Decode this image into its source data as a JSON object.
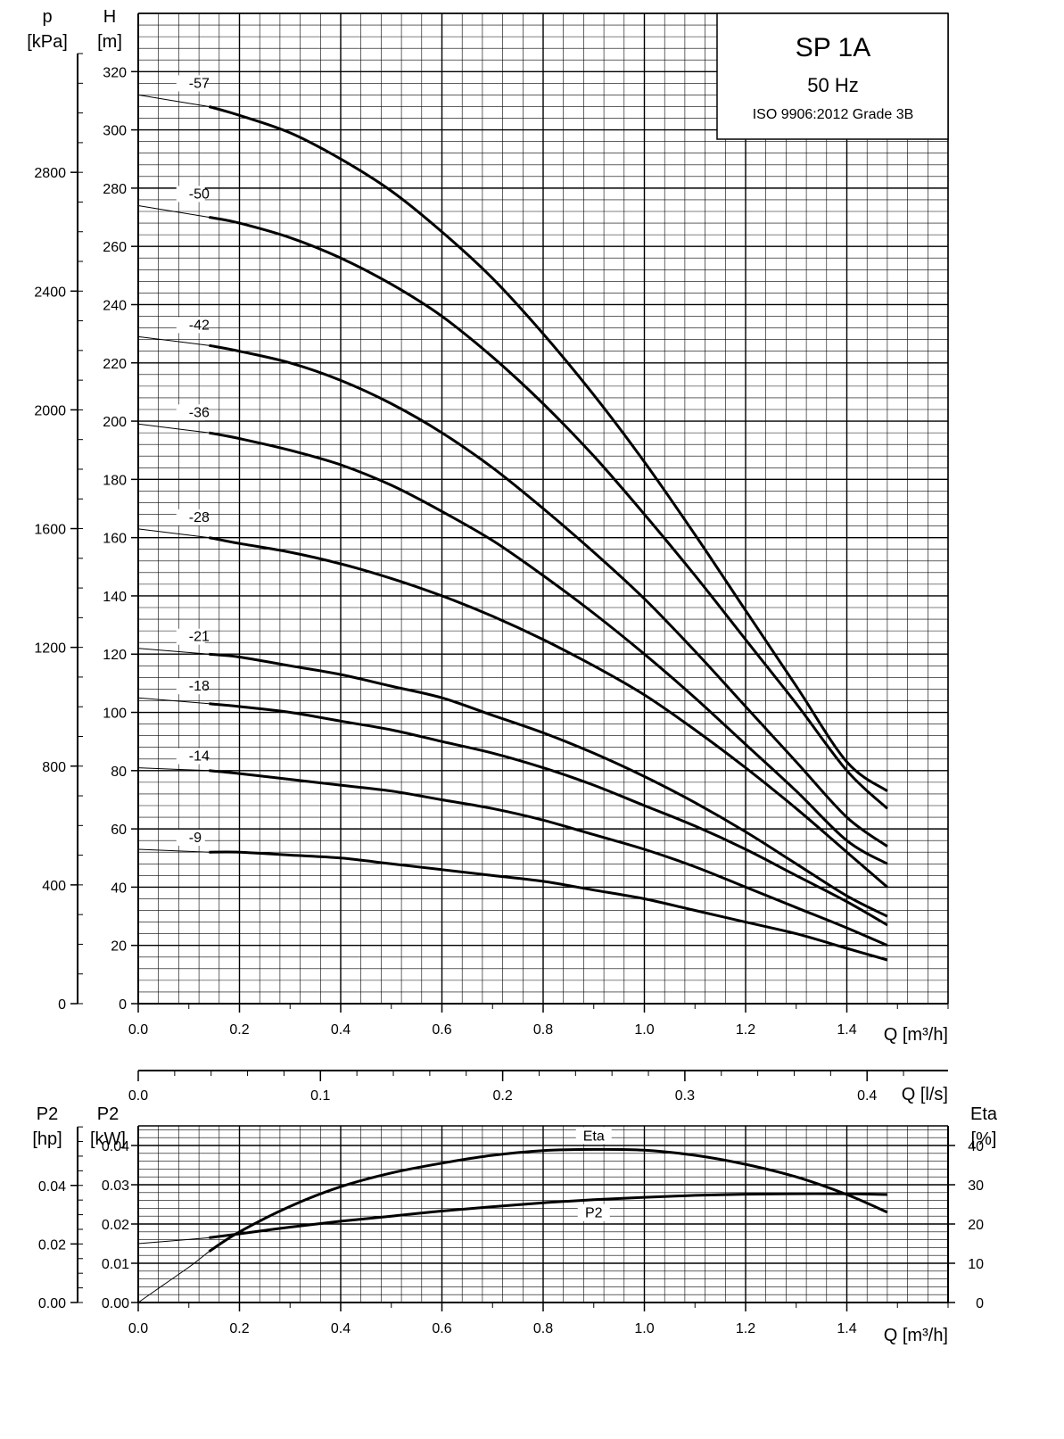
{
  "legend_box": {
    "model": "SP 1A",
    "frequency": "50 Hz",
    "standard": "ISO 9906:2012 Grade 3B"
  },
  "chart_data": [
    {
      "type": "line",
      "name": "head-chart",
      "x_label": "Q [m³/h]",
      "x_ticks": [
        "0.0",
        "0.2",
        "0.4",
        "0.6",
        "0.8",
        "1.0",
        "1.2",
        "1.4"
      ],
      "xlim": [
        0,
        1.6
      ],
      "y_label_top": "H",
      "y_label_unit": "[m]",
      "y_ticks": [
        "0",
        "20",
        "40",
        "60",
        "80",
        "100",
        "120",
        "140",
        "160",
        "180",
        "200",
        "220",
        "240",
        "260",
        "280",
        "300",
        "320"
      ],
      "ylim": [
        0,
        340
      ],
      "p_label_top": "p",
      "p_label_unit": "[kPa]",
      "p_ticks": [
        "0",
        "400",
        "800",
        "1200",
        "1600",
        "2000",
        "2400",
        "2800"
      ],
      "p_values": [
        0,
        400,
        800,
        1200,
        1600,
        2000,
        2400,
        2800
      ],
      "grid": true,
      "series": [
        {
          "name": "-57",
          "thin_x": [
            0,
            0.14
          ],
          "thin_y": [
            312,
            308
          ],
          "x": [
            0.14,
            0.2,
            0.3,
            0.4,
            0.5,
            0.6,
            0.7,
            0.8,
            0.9,
            1.0,
            1.1,
            1.2,
            1.3,
            1.4,
            1.48
          ],
          "y": [
            308,
            305,
            299,
            290,
            279,
            265,
            249,
            230,
            209,
            186,
            161,
            135,
            109,
            83,
            73
          ]
        },
        {
          "name": "-50",
          "thin_x": [
            0,
            0.14
          ],
          "thin_y": [
            274,
            270
          ],
          "x": [
            0.14,
            0.2,
            0.3,
            0.4,
            0.5,
            0.6,
            0.7,
            0.8,
            0.9,
            1.0,
            1.1,
            1.2,
            1.3,
            1.4,
            1.48
          ],
          "y": [
            270,
            268,
            263,
            256,
            247,
            236,
            222,
            206,
            188,
            168,
            147,
            125,
            103,
            80,
            67
          ]
        },
        {
          "name": "-42",
          "thin_x": [
            0,
            0.14
          ],
          "thin_y": [
            229,
            226
          ],
          "x": [
            0.14,
            0.2,
            0.3,
            0.4,
            0.5,
            0.6,
            0.7,
            0.8,
            0.9,
            1.0,
            1.1,
            1.2,
            1.3,
            1.4,
            1.48
          ],
          "y": [
            226,
            224,
            220,
            214,
            206,
            196,
            184,
            170,
            155,
            139,
            121,
            102,
            83,
            64,
            54
          ]
        },
        {
          "name": "-36",
          "thin_x": [
            0,
            0.14
          ],
          "thin_y": [
            199,
            196
          ],
          "x": [
            0.14,
            0.2,
            0.3,
            0.4,
            0.5,
            0.6,
            0.7,
            0.8,
            0.9,
            1.0,
            1.1,
            1.2,
            1.3,
            1.4,
            1.48
          ],
          "y": [
            196,
            194,
            190,
            185,
            178,
            169,
            159,
            147,
            134,
            120,
            105,
            89,
            73,
            56,
            48
          ]
        },
        {
          "name": "-28",
          "thin_x": [
            0,
            0.14
          ],
          "thin_y": [
            163,
            160
          ],
          "x": [
            0.14,
            0.2,
            0.3,
            0.4,
            0.5,
            0.6,
            0.7,
            0.8,
            0.9,
            1.0,
            1.1,
            1.2,
            1.3,
            1.4,
            1.48
          ],
          "y": [
            160,
            158,
            155,
            151,
            146,
            140,
            133,
            125,
            116,
            106,
            94,
            81,
            67,
            52,
            40
          ]
        },
        {
          "name": "-21",
          "thin_x": [
            0,
            0.14
          ],
          "thin_y": [
            122,
            120
          ],
          "x": [
            0.14,
            0.2,
            0.3,
            0.4,
            0.5,
            0.6,
            0.7,
            0.8,
            0.9,
            1.0,
            1.1,
            1.2,
            1.3,
            1.4,
            1.48
          ],
          "y": [
            120,
            119,
            116,
            113,
            109,
            105,
            99,
            93,
            86,
            78,
            69,
            59,
            48,
            37,
            30
          ]
        },
        {
          "name": "-18",
          "thin_x": [
            0,
            0.14
          ],
          "thin_y": [
            105,
            103
          ],
          "x": [
            0.14,
            0.2,
            0.3,
            0.4,
            0.5,
            0.6,
            0.7,
            0.8,
            0.9,
            1.0,
            1.1,
            1.2,
            1.3,
            1.4,
            1.48
          ],
          "y": [
            103,
            102,
            100,
            97,
            94,
            90,
            86,
            81,
            75,
            68,
            61,
            53,
            44,
            35,
            27
          ]
        },
        {
          "name": "-14",
          "thin_x": [
            0,
            0.14
          ],
          "thin_y": [
            81,
            80
          ],
          "x": [
            0.14,
            0.2,
            0.3,
            0.4,
            0.5,
            0.6,
            0.7,
            0.8,
            0.9,
            1.0,
            1.1,
            1.2,
            1.3,
            1.4,
            1.48
          ],
          "y": [
            80,
            79,
            77,
            75,
            73,
            70,
            67,
            63,
            58,
            53,
            47,
            40,
            33,
            26,
            20
          ]
        },
        {
          "name": "-9",
          "thin_x": [
            0,
            0.14
          ],
          "thin_y": [
            53,
            52
          ],
          "x": [
            0.14,
            0.2,
            0.3,
            0.4,
            0.5,
            0.6,
            0.7,
            0.8,
            0.9,
            1.0,
            1.1,
            1.2,
            1.3,
            1.4,
            1.48
          ],
          "y": [
            52,
            52,
            51,
            50,
            48,
            46,
            44,
            42,
            39,
            36,
            32,
            28,
            24,
            19,
            15
          ]
        }
      ]
    },
    {
      "type": "axis",
      "name": "flow-ls-axis",
      "x_label": "Q [l/s]",
      "x_ticks": [
        "0.0",
        "0.1",
        "0.2",
        "0.3",
        "0.4"
      ],
      "x_values": [
        0,
        0.1,
        0.2,
        0.3,
        0.4
      ],
      "xlim_m3h": [
        0,
        1.6
      ]
    },
    {
      "type": "line",
      "name": "power-efficiency-chart",
      "x_label": "Q [m³/h]",
      "x_ticks": [
        "0.0",
        "0.2",
        "0.4",
        "0.6",
        "0.8",
        "1.0",
        "1.2",
        "1.4"
      ],
      "xlim": [
        0,
        1.6
      ],
      "y_left_hp_top": "P2",
      "y_left_hp_unit": "[hp]",
      "y_left_hp_ticks": [
        "0.00",
        "0.02",
        "0.04"
      ],
      "y_left_hp_values": [
        0,
        0.02,
        0.04
      ],
      "y_left_kw_top": "P2",
      "y_left_kw_unit": "[kW]",
      "y_left_kw_ticks": [
        "0.00",
        "0.01",
        "0.02",
        "0.03",
        "0.04"
      ],
      "y_left_kw_values": [
        0,
        0.01,
        0.02,
        0.03,
        0.04
      ],
      "ylim_kw": [
        0,
        0.045
      ],
      "y_right_top": "Eta",
      "y_right_unit": "[%]",
      "y_right_ticks": [
        "0",
        "10",
        "20",
        "30",
        "40"
      ],
      "y_right_values": [
        0,
        10,
        20,
        30,
        40
      ],
      "grid": true,
      "series": [
        {
          "name": "Eta",
          "thin_x": [
            0,
            0.05,
            0.1,
            0.14
          ],
          "thin_y": [
            0,
            4.5,
            9,
            13
          ],
          "x": [
            0.14,
            0.2,
            0.3,
            0.4,
            0.5,
            0.6,
            0.7,
            0.8,
            0.9,
            1.0,
            1.1,
            1.2,
            1.3,
            1.4,
            1.48
          ],
          "y": [
            13,
            18,
            24.5,
            29.5,
            33,
            35.5,
            37.5,
            38.7,
            39,
            38.8,
            37.5,
            35.2,
            32,
            27.5,
            23
          ]
        },
        {
          "name": "P2",
          "thin_x": [
            0,
            0.14
          ],
          "thin_y": [
            0.015,
            0.0165
          ],
          "x": [
            0.14,
            0.2,
            0.3,
            0.4,
            0.5,
            0.6,
            0.7,
            0.8,
            0.9,
            1.0,
            1.1,
            1.2,
            1.3,
            1.4,
            1.48
          ],
          "y": [
            0.0165,
            0.0175,
            0.0192,
            0.0207,
            0.022,
            0.0233,
            0.0244,
            0.0254,
            0.0262,
            0.0268,
            0.0273,
            0.0276,
            0.0277,
            0.0277,
            0.0275
          ]
        }
      ]
    }
  ]
}
